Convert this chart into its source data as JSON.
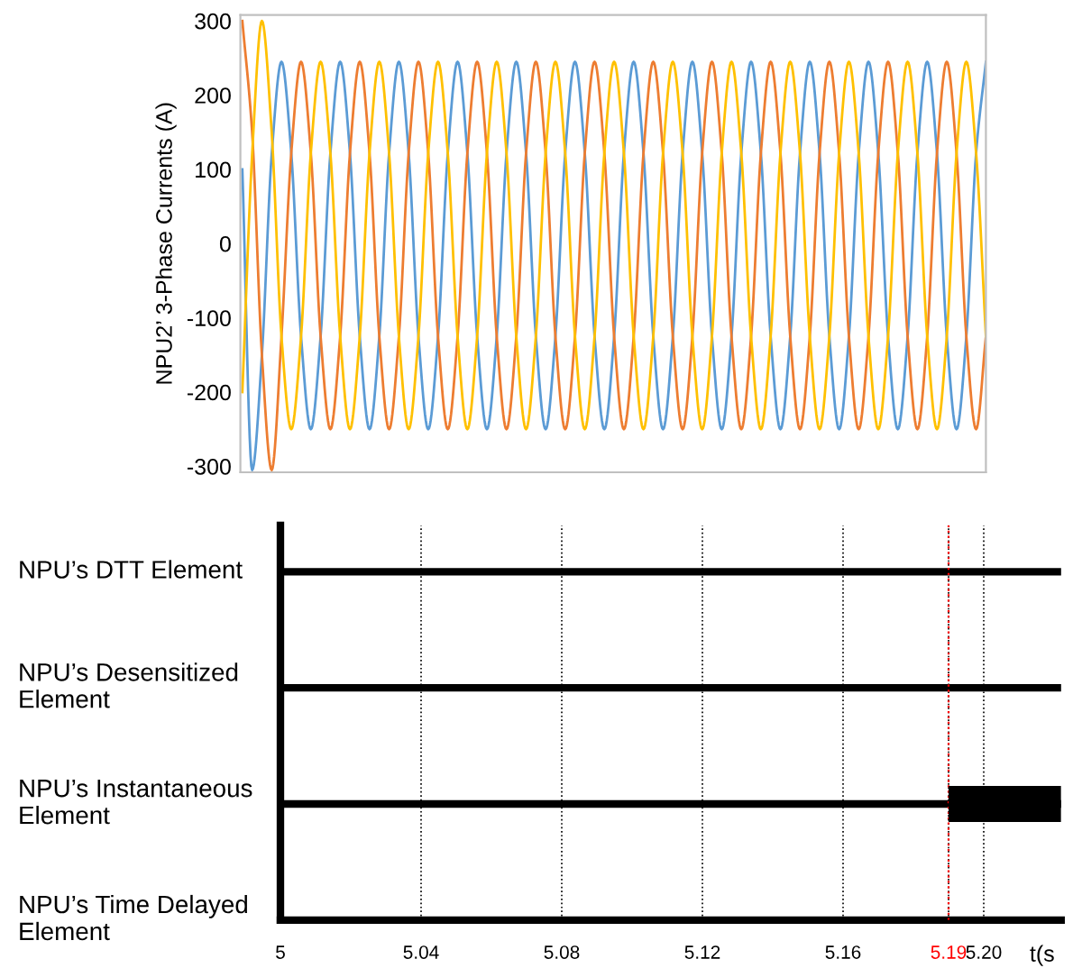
{
  "chart_data": [
    {
      "type": "line",
      "ylabel": "NPU2’ 3-Phase Currents (A)",
      "tick_labels": "y",
      "grid": false,
      "categories": [
        null,
        null,
        null,
        null,
        null,
        null,
        null,
        null,
        null,
        null,
        null,
        null,
        null,
        null,
        null,
        null,
        null,
        null,
        null,
        null,
        null,
        null,
        null,
        null,
        null,
        null,
        null,
        null,
        null,
        null,
        null,
        null,
        null,
        null,
        null,
        null,
        null,
        null,
        null,
        null,
        null,
        null,
        null,
        null,
        null,
        null,
        null,
        null,
        null,
        null,
        null,
        null,
        null,
        null,
        null,
        null,
        null,
        null,
        null,
        null,
        null,
        null,
        null,
        null,
        null,
        null,
        null,
        null,
        null,
        null,
        null,
        null,
        null,
        null,
        null,
        null,
        null
      ],
      "ylim": [
        -308,
        308
      ],
      "yticks": [
        -300,
        -200,
        -100,
        0,
        100,
        200,
        300
      ],
      "series": [
        {
          "color": "#5b9bd5",
          "values": [
            100,
            -305,
            -150,
            120,
            245,
            122,
            -125,
            -250,
            -125,
            122,
            245,
            122,
            -125,
            -250,
            -125,
            122,
            245,
            122,
            -125,
            -250,
            -125,
            122,
            245,
            122,
            -125,
            -250,
            -125,
            122,
            245,
            122,
            -125,
            -250,
            -125,
            122,
            245,
            122,
            -125,
            -250,
            -125,
            122,
            245,
            122,
            -125,
            -250,
            -125,
            122,
            245,
            122,
            -125,
            -250,
            -125,
            122,
            245,
            122,
            -125,
            -250,
            -125,
            122,
            245,
            122,
            -125,
            -250,
            -125,
            122,
            245,
            122,
            -125,
            -250,
            -125,
            122,
            245,
            122,
            -125,
            -250,
            -125,
            122,
            245
          ]
        },
        {
          "color": "#ed7d31",
          "values": [
            300,
            150,
            -150,
            -305,
            -125,
            122,
            245,
            122,
            -125,
            -250,
            -125,
            122,
            245,
            122,
            -125,
            -250,
            -125,
            122,
            245,
            122,
            -125,
            -250,
            -125,
            122,
            245,
            122,
            -125,
            -250,
            -125,
            122,
            245,
            122,
            -125,
            -250,
            -125,
            122,
            245,
            122,
            -125,
            -250,
            -125,
            122,
            245,
            122,
            -125,
            -250,
            -125,
            122,
            245,
            122,
            -125,
            -250,
            -125,
            122,
            245,
            122,
            -125,
            -250,
            -125,
            122,
            245,
            122,
            -125,
            -250,
            -125,
            122,
            245,
            122,
            -125,
            -250,
            -125,
            122,
            245,
            122,
            -125,
            -250,
            -125
          ]
        },
        {
          "color": "#ffc000",
          "values": [
            -200,
            120,
            300,
            150,
            -125,
            -250,
            -125,
            122,
            245,
            122,
            -125,
            -250,
            -125,
            122,
            245,
            122,
            -125,
            -250,
            -125,
            122,
            245,
            122,
            -125,
            -250,
            -125,
            122,
            245,
            122,
            -125,
            -250,
            -125,
            122,
            245,
            122,
            -125,
            -250,
            -125,
            122,
            245,
            122,
            -125,
            -250,
            -125,
            122,
            245,
            122,
            -125,
            -250,
            -125,
            122,
            245,
            122,
            -125,
            -250,
            -125,
            122,
            245,
            122,
            -125,
            -250,
            -125,
            122,
            245,
            122,
            -125,
            -250,
            -125,
            122,
            245,
            122,
            -125,
            -250,
            -125,
            122,
            245,
            122,
            -125
          ]
        }
      ]
    },
    {
      "type": "bar",
      "orientation": "horizontal",
      "xlabel": "t(s",
      "grid": true,
      "categories": [
        "NPU’s DTT Element",
        "NPU’s Desensitized Element",
        "NPU’s Instantaneous Element",
        "NPU’s Time Delayed Element"
      ],
      "values": [
        null,
        null,
        0.032,
        null
      ],
      "base": [
        null,
        null,
        5.19,
        null
      ],
      "color": "#000000",
      "xlim": [
        5,
        5.222
      ],
      "xticks": [
        5,
        5.04,
        5.08,
        5.12,
        5.16,
        {
          "value": 5.19,
          "label": "5.19"
        },
        {
          "value": 5.2,
          "label": "5.20"
        }
      ],
      "ref_lines": [
        {
          "axis": "x",
          "value": 5.19,
          "color": "#ff0000",
          "line_style": "dotted"
        }
      ]
    }
  ]
}
